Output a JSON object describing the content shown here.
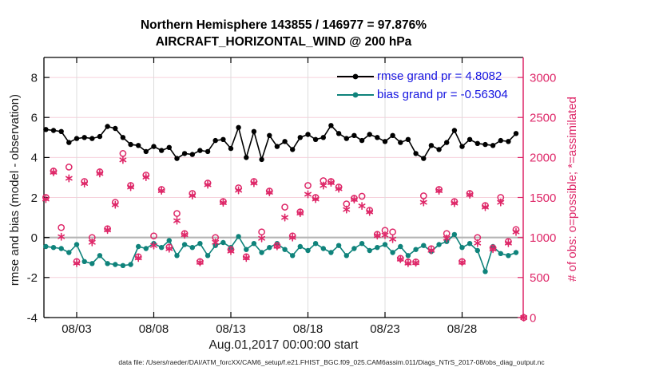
{
  "header": {
    "title_line1": "Northern Hemisphere 143855 / 146977 = 97.876%",
    "title_line2": "AIRCRAFT_HORIZONTAL_WIND @ 200 hPa"
  },
  "legend": [
    {
      "label": "rmse grand pr = 4.8082",
      "color": "#000000"
    },
    {
      "label": "bias grand pr = -0.56304",
      "color": "#0f837b"
    }
  ],
  "footer": {
    "data_file": "data file: /Users/raeder/DAI/ATM_forcXX/CAM6_setup/f.e21.FHIST_BGC.f09_025.CAM6assim.011/Diags_NTrS_2017-08/obs_diag_output.nc"
  },
  "chart_data": {
    "type": "line",
    "title": "Northern Hemisphere 143855 / 146977 = 97.876% — AIRCRAFT_HORIZONTAL_WIND @ 200 hPa",
    "left_axis": {
      "label": "rmse and bias (model - observation)",
      "range": [
        -4,
        9
      ],
      "ticks": [
        8,
        6,
        4,
        2,
        0,
        -2,
        -4
      ]
    },
    "right_axis": {
      "label": "# of obs: o=possible; *=assimilated",
      "range": [
        0,
        3250
      ],
      "ticks": [
        3000,
        2500,
        2000,
        1500,
        1000,
        500,
        0
      ]
    },
    "x_axis": {
      "start_label": "Aug.01,2017 00:00:00 start",
      "t_start_days": 0,
      "t_step_days": 0.5,
      "t_max_days": 31,
      "ticks": [
        {
          "t": 2,
          "label": "08/03"
        },
        {
          "t": 7,
          "label": "08/08"
        },
        {
          "t": 12,
          "label": "08/13"
        },
        {
          "t": 17,
          "label": "08/18"
        },
        {
          "t": 22,
          "label": "08/23"
        },
        {
          "t": 27,
          "label": "08/28"
        }
      ]
    },
    "colors": {
      "rmse": "#000000",
      "bias": "#0f837b",
      "obs": "#de2768",
      "grid_h": "#f6d0db",
      "grid_v": "#dcdcdc",
      "zero_line": "#b5b5b5",
      "axis_text": "#1a1a1a",
      "legend_text": "#1414e0"
    },
    "series": [
      {
        "name": "rmse",
        "axis": "left",
        "grand_pr": 4.8082,
        "marker": "dot-line",
        "values": [
          5.4,
          5.35,
          5.3,
          4.75,
          4.95,
          5.0,
          4.95,
          5.05,
          5.55,
          5.45,
          5.0,
          4.65,
          4.6,
          4.3,
          4.55,
          4.35,
          4.5,
          3.95,
          4.2,
          4.15,
          4.35,
          4.3,
          4.85,
          4.9,
          4.45,
          5.5,
          4.0,
          5.3,
          3.9,
          5.1,
          4.55,
          4.8,
          4.4,
          5.0,
          5.15,
          4.9,
          5.0,
          5.6,
          5.2,
          4.95,
          5.1,
          4.85,
          5.15,
          5.0,
          4.8,
          5.1,
          4.75,
          4.9,
          4.2,
          3.95,
          4.6,
          4.4,
          4.75,
          5.35,
          4.55,
          4.9,
          4.7,
          4.65,
          4.6,
          4.85,
          4.8,
          5.2,
          null
        ]
      },
      {
        "name": "bias",
        "axis": "left",
        "grand_pr": -0.56304,
        "marker": "dot-line",
        "values": [
          -0.45,
          -0.5,
          -0.55,
          -0.75,
          -0.35,
          -1.2,
          -1.3,
          -0.9,
          -1.3,
          -1.35,
          -1.4,
          -1.35,
          -0.45,
          -0.55,
          -0.3,
          -0.5,
          -0.15,
          -0.9,
          -0.35,
          -0.5,
          -0.3,
          -0.9,
          -0.4,
          -0.25,
          -0.5,
          0.05,
          -0.6,
          -0.3,
          -0.75,
          -0.5,
          -0.3,
          -0.6,
          -0.9,
          -0.45,
          -0.65,
          -0.3,
          -0.55,
          -0.75,
          -0.4,
          -0.9,
          -0.55,
          -0.3,
          -0.65,
          -0.5,
          -0.35,
          -0.75,
          -0.45,
          -0.9,
          -0.6,
          -0.4,
          -0.7,
          -0.35,
          -0.2,
          0.15,
          -0.5,
          -0.3,
          -0.65,
          -1.7,
          -0.45,
          -0.8,
          -0.9,
          -0.75,
          null
        ]
      },
      {
        "name": "possible_obs",
        "axis": "right",
        "marker": "open-circle",
        "values": [
          1500,
          1830,
          1125,
          1880,
          700,
          1700,
          1000,
          1820,
          1110,
          1440,
          2050,
          1650,
          760,
          1780,
          1020,
          1600,
          880,
          1300,
          1050,
          1550,
          700,
          1680,
          1000,
          1450,
          850,
          1620,
          760,
          1700,
          1070,
          1580,
          900,
          1380,
          1020,
          1320,
          1650,
          1500,
          1710,
          1700,
          1630,
          1420,
          1490,
          1515,
          1340,
          1040,
          1090,
          1070,
          740,
          695,
          695,
          1520,
          860,
          1600,
          1050,
          1450,
          700,
          1550,
          1000,
          1400,
          870,
          1500,
          950,
          1100,
          0
        ]
      },
      {
        "name": "assimilated_obs",
        "axis": "right",
        "marker": "star",
        "values": [
          1480,
          1815,
          1010,
          1740,
          680,
          1675,
          940,
          1800,
          1095,
          1410,
          1970,
          1630,
          745,
          1755,
          900,
          1585,
          860,
          1210,
          1035,
          1525,
          690,
          1660,
          940,
          1435,
          830,
          1590,
          745,
          1680,
          990,
          1565,
          890,
          1250,
          1000,
          1305,
          1540,
          1480,
          1650,
          1685,
          1610,
          1350,
          1475,
          1395,
          1320,
          1025,
          1030,
          980,
          730,
          680,
          685,
          1440,
          840,
          1585,
          990,
          1430,
          690,
          1535,
          930,
          1380,
          855,
          1440,
          930,
          1070,
          0
        ]
      }
    ]
  }
}
